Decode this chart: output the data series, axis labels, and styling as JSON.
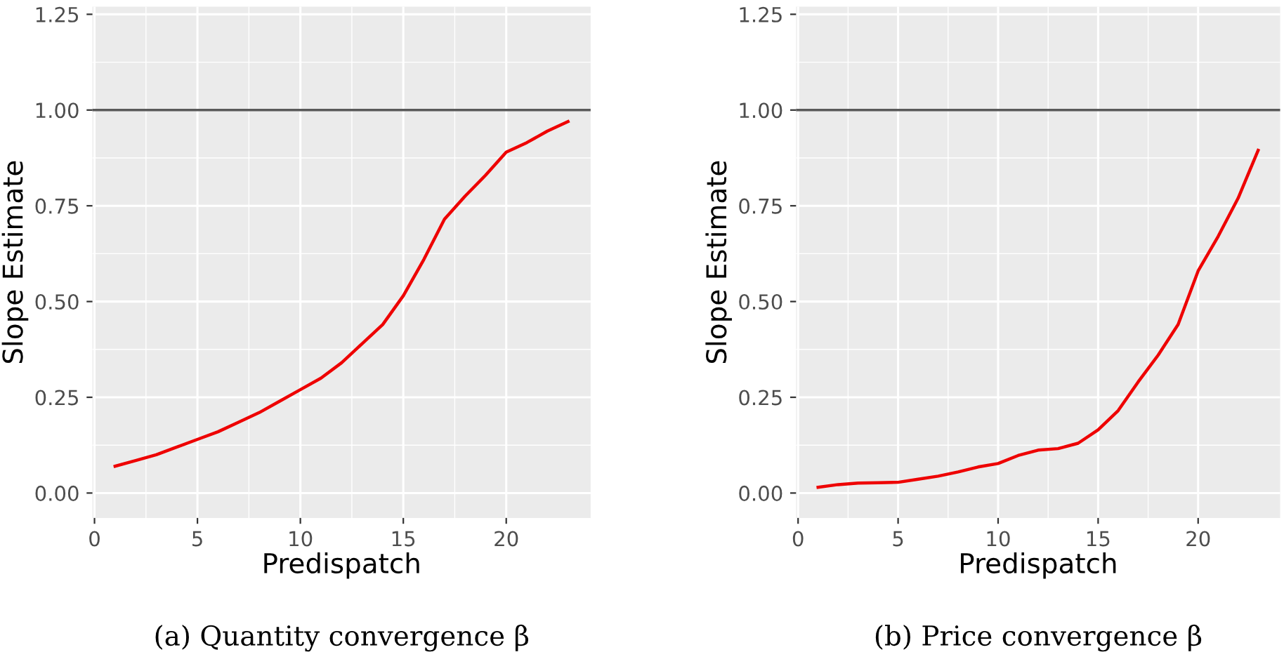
{
  "chart_data": [
    {
      "type": "line",
      "xlabel": "Predispatch",
      "ylabel": "Slope Estimate",
      "annotations": [
        "(a) Quantity convergence β"
      ],
      "x": [
        1,
        2,
        3,
        4,
        5,
        6,
        7,
        8,
        9,
        10,
        11,
        12,
        13,
        14,
        15,
        16,
        17,
        18,
        19,
        20,
        21,
        22,
        23
      ],
      "series": [
        {
          "color": "#ee0000",
          "values": [
            0.07,
            0.085,
            0.1,
            0.12,
            0.14,
            0.16,
            0.185,
            0.21,
            0.24,
            0.27,
            0.3,
            0.34,
            0.39,
            0.44,
            0.515,
            0.61,
            0.715,
            0.775,
            0.83,
            0.89,
            0.915,
            0.945,
            0.97
          ]
        }
      ],
      "xlim": [
        -0.1,
        24.1
      ],
      "ylim": [
        -0.065,
        1.27
      ],
      "xticks": [
        0,
        5,
        10,
        15,
        20
      ],
      "yticks": [
        {
          "value": 0,
          "label": "0.00"
        },
        {
          "value": 0.25,
          "label": "0.25"
        },
        {
          "value": 0.5,
          "label": "0.50"
        },
        {
          "value": 0.75,
          "label": "0.75"
        },
        {
          "value": 1,
          "label": "1.00"
        },
        {
          "value": 1.25,
          "label": "1.25"
        }
      ],
      "ref_lines": [
        {
          "axis": "y",
          "value": 1,
          "color": "#595959"
        }
      ],
      "grid": true
    },
    {
      "type": "line",
      "xlabel": "Predispatch",
      "ylabel": "Slope Estimate",
      "annotations": [
        "(b) Price convergence β"
      ],
      "x": [
        1,
        2,
        3,
        4,
        5,
        6,
        7,
        8,
        9,
        10,
        11,
        12,
        13,
        14,
        15,
        16,
        17,
        18,
        19,
        20,
        21,
        22,
        23
      ],
      "series": [
        {
          "color": "#ee0000",
          "values": [
            0.015,
            0.022,
            0.026,
            0.027,
            0.028,
            0.036,
            0.044,
            0.055,
            0.068,
            0.077,
            0.098,
            0.112,
            0.116,
            0.13,
            0.165,
            0.215,
            0.29,
            0.36,
            0.44,
            0.58,
            0.67,
            0.77,
            0.895
          ]
        }
      ],
      "xlim": [
        -0.1,
        24.1
      ],
      "ylim": [
        -0.065,
        1.27
      ],
      "xticks": [
        0,
        5,
        10,
        15,
        20
      ],
      "yticks": [
        {
          "value": 0,
          "label": "0.00"
        },
        {
          "value": 0.25,
          "label": "0.25"
        },
        {
          "value": 0.5,
          "label": "0.50"
        },
        {
          "value": 0.75,
          "label": "0.75"
        },
        {
          "value": 1,
          "label": "1.00"
        },
        {
          "value": 1.25,
          "label": "1.25"
        }
      ],
      "ref_lines": [
        {
          "axis": "y",
          "value": 1,
          "color": "#595959"
        }
      ],
      "grid": true
    }
  ]
}
